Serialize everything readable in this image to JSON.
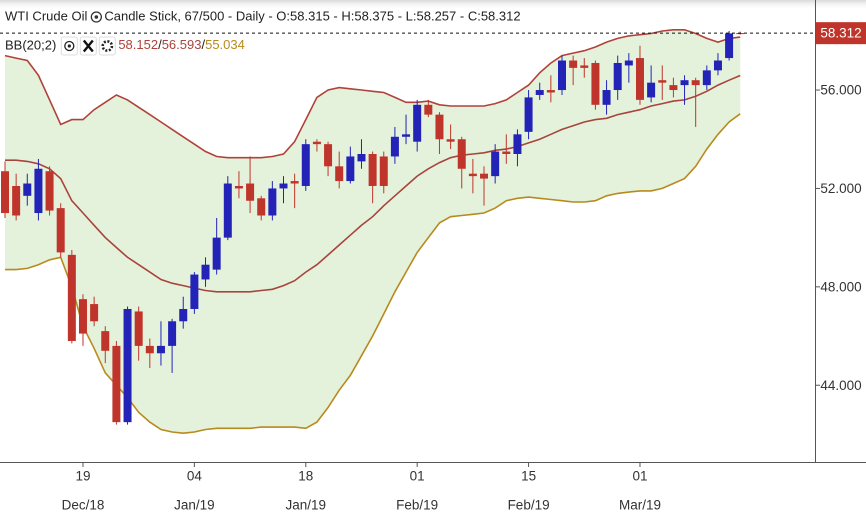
{
  "chart_data": {
    "type": "candlestick",
    "title": "WTI Crude Oil",
    "subtitle": "Candle Stick, 67/500 - Daily - O:58.315 - H:58.375 - L:58.257 - C:58.312",
    "categories": [
      null,
      null,
      null,
      null,
      null,
      null,
      null,
      "19",
      null,
      null,
      null,
      null,
      null,
      null,
      null,
      null,
      null,
      "04",
      null,
      null,
      null,
      null,
      null,
      null,
      null,
      null,
      null,
      "18",
      null,
      null,
      null,
      null,
      null,
      null,
      null,
      null,
      null,
      "01",
      null,
      null,
      null,
      null,
      null,
      null,
      null,
      null,
      null,
      "15",
      null,
      null,
      null,
      null,
      null,
      null,
      null,
      null,
      null,
      "01",
      null,
      null,
      null,
      null,
      null,
      null,
      null,
      null,
      null
    ],
    "category_months": [
      null,
      null,
      null,
      null,
      null,
      null,
      null,
      "Dec/18",
      null,
      null,
      null,
      null,
      null,
      null,
      null,
      null,
      null,
      "Jan/19",
      null,
      null,
      null,
      null,
      null,
      null,
      null,
      null,
      null,
      "Jan/19",
      null,
      null,
      null,
      null,
      null,
      null,
      null,
      null,
      null,
      "Feb/19",
      null,
      null,
      null,
      null,
      null,
      null,
      null,
      null,
      null,
      "Feb/19",
      null,
      null,
      null,
      null,
      null,
      null,
      null,
      null,
      null,
      "Mar/19",
      null,
      null,
      null,
      null,
      null,
      null,
      null,
      null,
      null
    ],
    "open": [
      52.7,
      52.1,
      51.7,
      51.0,
      52.7,
      51.2,
      49.3,
      47.5,
      47.3,
      46.2,
      45.6,
      42.5,
      47.0,
      45.6,
      45.3,
      45.6,
      46.6,
      47.1,
      48.3,
      48.7,
      50.0,
      52.1,
      52.2,
      51.6,
      50.9,
      52.0,
      52.3,
      52.1,
      53.9,
      53.8,
      52.9,
      52.3,
      53.1,
      53.4,
      53.3,
      53.3,
      54.1,
      53.9,
      55.4,
      55.0,
      54.0,
      54.0,
      52.6,
      52.6,
      52.5,
      53.5,
      53.4,
      54.3,
      55.8,
      56.0,
      56.0,
      57.2,
      57.0,
      57.1,
      55.4,
      56.0,
      57.0,
      57.3,
      55.7,
      56.4,
      56.2,
      56.2,
      56.4,
      56.2,
      56.8,
      57.3,
      58.315
    ],
    "high": [
      53.1,
      52.6,
      52.6,
      53.2,
      52.9,
      51.4,
      49.5,
      47.7,
      47.6,
      46.4,
      45.8,
      47.2,
      47.2,
      45.9,
      46.6,
      46.7,
      47.6,
      48.6,
      49.2,
      50.8,
      52.5,
      52.7,
      53.3,
      51.7,
      52.3,
      52.5,
      52.6,
      54.0,
      54.0,
      53.9,
      53.5,
      53.7,
      54.0,
      53.5,
      53.5,
      54.5,
      55.0,
      55.6,
      55.6,
      55.1,
      54.6,
      54.1,
      53.2,
      52.9,
      53.8,
      54.2,
      54.4,
      56.0,
      56.3,
      56.6,
      57.4,
      57.4,
      57.3,
      57.2,
      56.4,
      57.4,
      57.5,
      57.8,
      57.0,
      57.0,
      56.5,
      56.6,
      56.5,
      57.0,
      57.5,
      58.4,
      58.375
    ],
    "low": [
      50.8,
      50.7,
      51.3,
      50.7,
      50.9,
      49.2,
      45.7,
      45.6,
      46.4,
      44.9,
      42.4,
      42.4,
      45.0,
      44.7,
      44.8,
      44.5,
      46.3,
      46.9,
      48.0,
      48.5,
      49.9,
      51.6,
      51.0,
      50.7,
      50.7,
      51.4,
      51.2,
      51.9,
      53.5,
      52.5,
      52.0,
      52.2,
      52.8,
      51.4,
      51.8,
      53.0,
      53.8,
      53.5,
      54.9,
      53.4,
      53.6,
      52.0,
      51.8,
      51.3,
      52.2,
      53.0,
      52.9,
      54.0,
      55.6,
      55.5,
      55.8,
      56.2,
      56.5,
      55.2,
      55.0,
      55.6,
      56.3,
      55.4,
      55.5,
      55.6,
      55.7,
      55.4,
      54.5,
      56.0,
      56.6,
      57.2,
      58.257
    ],
    "close": [
      51.0,
      50.9,
      52.2,
      52.8,
      51.1,
      49.4,
      45.8,
      46.1,
      46.6,
      45.4,
      42.5,
      47.1,
      45.6,
      45.3,
      45.6,
      46.6,
      47.1,
      48.5,
      48.9,
      50.0,
      52.2,
      52.0,
      51.5,
      50.9,
      52.0,
      52.2,
      52.2,
      53.8,
      53.8,
      52.9,
      52.3,
      53.3,
      53.4,
      52.1,
      52.1,
      54.1,
      54.2,
      55.4,
      55.0,
      54.0,
      53.9,
      52.8,
      52.5,
      52.4,
      53.5,
      53.4,
      54.2,
      55.7,
      56.0,
      55.9,
      57.2,
      56.9,
      56.9,
      55.4,
      56.0,
      57.1,
      57.2,
      55.6,
      56.3,
      56.3,
      56.0,
      56.4,
      56.2,
      56.8,
      57.2,
      58.3,
      58.312
    ],
    "up_color": "#2323b8",
    "down_color": "#c0352b",
    "indicator": {
      "name": "BB(20;2)",
      "separator": "/",
      "fill_color": "#e4f2dc",
      "bands": [
        {
          "color": "#b0423a",
          "values": [
            57.4,
            57.3,
            57.2,
            56.6,
            55.6,
            54.6,
            54.8,
            54.8,
            55.2,
            55.5,
            55.8,
            55.6,
            55.3,
            55.0,
            54.7,
            54.4,
            54.1,
            53.8,
            53.5,
            53.3,
            53.25,
            53.25,
            53.25,
            53.25,
            53.3,
            53.4,
            53.9,
            54.8,
            55.7,
            56.0,
            56.1,
            56.05,
            56.0,
            55.95,
            55.9,
            55.7,
            55.5,
            55.5,
            55.55,
            55.4,
            55.35,
            55.35,
            55.35,
            55.35,
            55.45,
            55.6,
            55.9,
            56.2,
            56.7,
            57.1,
            57.4,
            57.5,
            57.6,
            57.75,
            57.95,
            58.1,
            58.2,
            58.25,
            58.3,
            58.4,
            58.45,
            58.45,
            58.3,
            58.1,
            57.95,
            58.1,
            58.152
          ]
        },
        {
          "color": "#a8443c",
          "values": [
            53.15,
            53.15,
            53.1,
            53.0,
            52.8,
            52.4,
            51.5,
            51.0,
            50.5,
            50.0,
            49.6,
            49.2,
            48.9,
            48.6,
            48.3,
            48.15,
            48.05,
            47.95,
            47.85,
            47.8,
            47.8,
            47.8,
            47.8,
            47.85,
            47.9,
            48.05,
            48.25,
            48.6,
            48.9,
            49.3,
            49.7,
            50.1,
            50.5,
            50.85,
            51.3,
            51.7,
            52.1,
            52.5,
            52.8,
            53.05,
            53.25,
            53.35,
            53.4,
            53.45,
            53.55,
            53.6,
            53.7,
            53.85,
            54.0,
            54.2,
            54.4,
            54.55,
            54.7,
            54.8,
            54.85,
            55.0,
            55.1,
            55.2,
            55.35,
            55.45,
            55.55,
            55.6,
            55.75,
            55.95,
            56.2,
            56.4,
            56.593
          ]
        },
        {
          "color": "#b88a1e",
          "values": [
            48.7,
            48.7,
            48.75,
            48.9,
            49.1,
            49.2,
            48.0,
            46.4,
            45.5,
            44.5,
            44.0,
            43.5,
            42.9,
            42.5,
            42.2,
            42.1,
            42.05,
            42.1,
            42.2,
            42.25,
            42.25,
            42.25,
            42.25,
            42.3,
            42.3,
            42.3,
            42.3,
            42.25,
            42.5,
            43.1,
            43.8,
            44.4,
            45.2,
            46.0,
            46.9,
            47.8,
            48.6,
            49.4,
            50.0,
            50.6,
            50.85,
            50.9,
            50.95,
            51.0,
            51.2,
            51.5,
            51.6,
            51.65,
            51.6,
            51.55,
            51.5,
            51.45,
            51.45,
            51.5,
            51.7,
            51.8,
            51.85,
            51.9,
            51.9,
            52.0,
            52.2,
            52.4,
            52.9,
            53.6,
            54.2,
            54.7,
            55.034
          ]
        }
      ]
    },
    "ylim": [
      40.88,
      59.66
    ],
    "yticks": [
      {
        "value": 44,
        "label": "44.000"
      },
      {
        "value": 48,
        "label": "48.000"
      },
      {
        "value": 52,
        "label": "52.000"
      },
      {
        "value": 56,
        "label": "56.000"
      }
    ],
    "grid": false
  }
}
